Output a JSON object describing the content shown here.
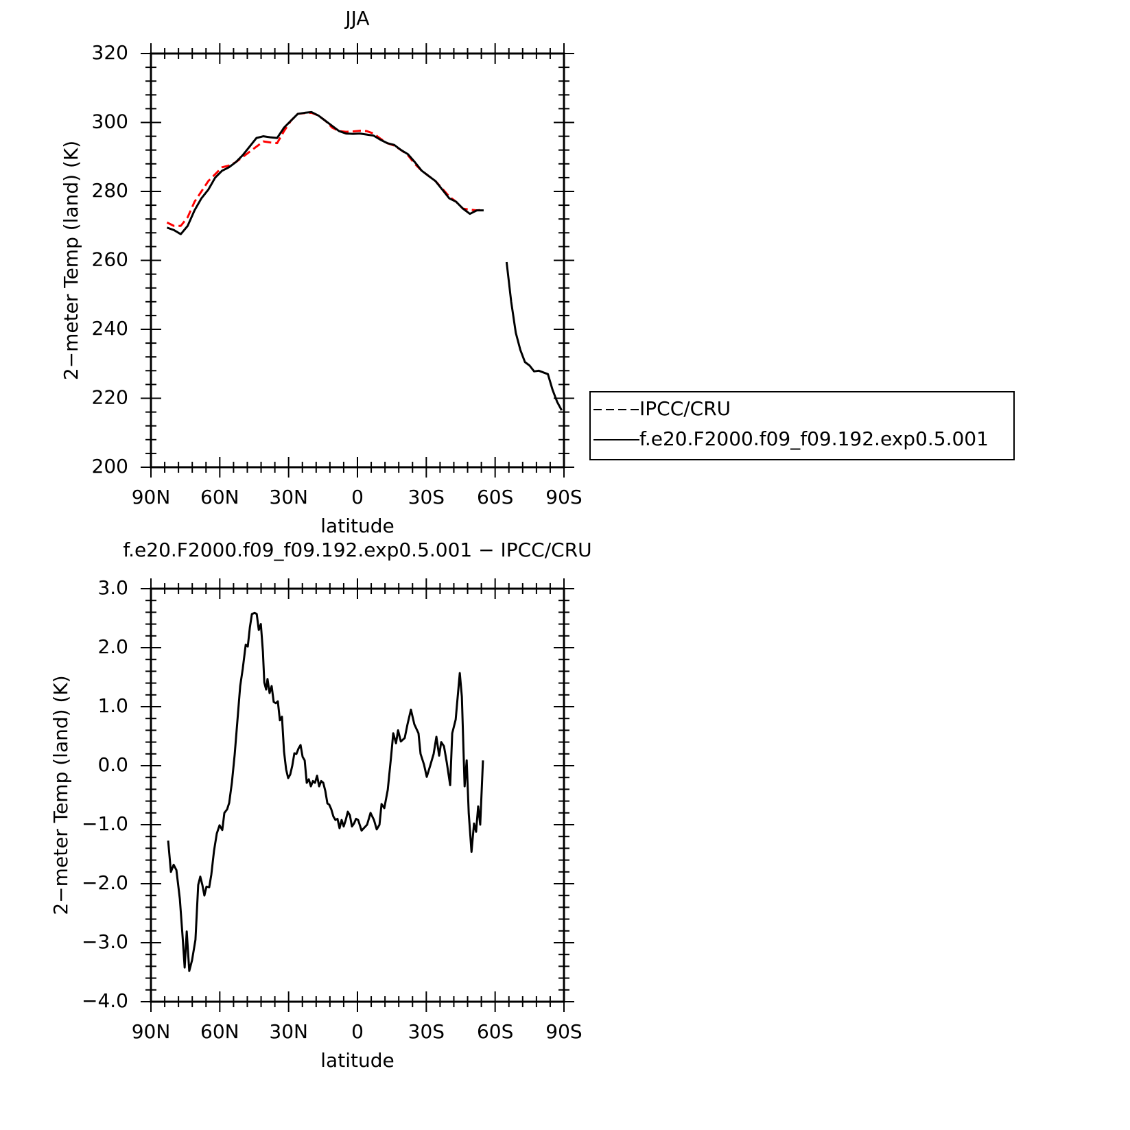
{
  "chart_data": [
    {
      "type": "line",
      "title": "JJA",
      "xlabel": "latitude",
      "ylabel": "2−meter Temp (land) (K)",
      "x": [
        83,
        80,
        77,
        74,
        71,
        68,
        65,
        62,
        59,
        56,
        53,
        50,
        47,
        44,
        41,
        38,
        35,
        32,
        29,
        26,
        23,
        20,
        17,
        14,
        11,
        8,
        5,
        2,
        -1,
        -4,
        -7,
        -10,
        -13,
        -16,
        -19,
        -22,
        -25,
        -28,
        -31,
        -34,
        -37,
        -40,
        -43,
        -46,
        -49,
        -52,
        -55,
        -60,
        -65,
        -67,
        -69,
        -71,
        -73,
        -75,
        -77,
        -79,
        -81,
        -83,
        -85,
        -87,
        -89
      ],
      "series": [
        {
          "name": "IPCC/CRU",
          "color": "#ff0000",
          "style": "dashed",
          "values": [
            271,
            270,
            270,
            272.5,
            277,
            280,
            283,
            285,
            287,
            287.5,
            288.5,
            290,
            291.5,
            293,
            294.5,
            294.2,
            294,
            297.5,
            300.5,
            302.5,
            302.7,
            302.8,
            302,
            300.5,
            298.5,
            297.5,
            297.3,
            297.4,
            297.6,
            297.5,
            296.8,
            295.3,
            294,
            293.3,
            292,
            290.5,
            288,
            286,
            284.5,
            283,
            280.8,
            278.5,
            277,
            275,
            274.7,
            274.5,
            274.7,
            null,
            null,
            null,
            null,
            null,
            null,
            null,
            null,
            null,
            null,
            null,
            null,
            null,
            null
          ]
        },
        {
          "name": "f.e20.F2000.f09_f09.192.exp0.5.001",
          "color": "#000000",
          "style": "solid",
          "values": [
            269.5,
            268.8,
            267.6,
            270,
            274.5,
            278,
            280.5,
            284,
            286,
            287,
            288.5,
            290.5,
            293,
            295.5,
            296,
            295.7,
            295.5,
            298.5,
            300.5,
            302.5,
            302.8,
            303,
            302,
            300.5,
            299,
            297.5,
            296.8,
            296.7,
            296.8,
            296.5,
            296.2,
            295,
            294,
            293.5,
            292,
            290.8,
            288.5,
            286,
            284.5,
            283,
            280.5,
            278,
            277,
            275,
            273.5,
            274.5,
            274.5,
            null,
            259.5,
            248,
            239,
            234,
            230.5,
            229.5,
            227.8,
            228,
            227.5,
            227,
            222.5,
            219,
            216.5
          ]
        }
      ],
      "xlim": [
        90,
        -90
      ],
      "xticks": [
        {
          "value": 90,
          "label": "90N"
        },
        {
          "value": 60,
          "label": "60N"
        },
        {
          "value": 30,
          "label": "30N"
        },
        0,
        {
          "value": -30,
          "label": "30S"
        },
        {
          "value": -60,
          "label": "60S"
        },
        {
          "value": -90,
          "label": "90S"
        }
      ],
      "ylim": [
        200,
        320
      ],
      "yticks": [
        200,
        220,
        240,
        260,
        280,
        300,
        320
      ],
      "legend": "right"
    },
    {
      "type": "line",
      "title": "f.e20.F2000.f09_f09.192.exp0.5.001 − IPCC/CRU",
      "xlabel": "latitude",
      "ylabel": "2−meter Temp (land) (K)",
      "x": [
        82.5,
        81.3,
        80.1,
        78.9,
        77.4,
        76.2,
        75.3,
        74.4,
        73.3,
        72.1,
        70.6,
        69.4,
        68.5,
        67.6,
        66.7,
        65.8,
        64.6,
        63.7,
        62.5,
        61.3,
        60.1,
        58.9,
        58.0,
        56.8,
        55.9,
        54.7,
        53.5,
        52.3,
        51.1,
        50.0,
        48.7,
        47.8,
        46.9,
        46.0,
        44.8,
        43.9,
        43.0,
        42.1,
        41.2,
        40.6,
        39.8,
        39.2,
        38.3,
        37.4,
        36.5,
        35.6,
        34.7,
        33.8,
        32.9,
        32.0,
        31.1,
        30.2,
        29.3,
        28.4,
        27.5,
        26.6,
        25.7,
        24.8,
        23.9,
        23.0,
        22.1,
        21.2,
        20.3,
        19.4,
        18.5,
        17.6,
        16.7,
        15.8,
        14.9,
        14.0,
        13.1,
        12.3,
        11.4,
        10.5,
        9.6,
        8.7,
        7.8,
        6.9,
        6.0,
        5.1,
        4.2,
        3.3,
        2.4,
        1.5,
        0.6,
        -0.3,
        -1.8,
        -4.2,
        -5.7,
        -7.2,
        -8.4,
        -9.6,
        -10.5,
        -11.7,
        -13.2,
        -14.7,
        -15.6,
        -16.8,
        -17.7,
        -18.9,
        -20.6,
        -21.8,
        -23.3,
        -24.8,
        -26.6,
        -27.5,
        -29.0,
        -30.2,
        -31.7,
        -33.2,
        -34.4,
        -35.6,
        -36.5,
        -37.7,
        -38.9,
        -40.4,
        -41.3,
        -42.8,
        -44.6,
        -45.5,
        -46.7,
        -47.6,
        -48.5,
        -49.7,
        -50.8,
        -51.7,
        -52.6,
        -53.5,
        -54.7
      ],
      "series": [
        {
          "color": "#000000",
          "style": "solid",
          "values": [
            -1.27,
            -1.8,
            -1.68,
            -1.77,
            -2.26,
            -2.9,
            -3.42,
            -2.81,
            -3.48,
            -3.3,
            -2.95,
            -2.02,
            -1.88,
            -2.02,
            -2.2,
            -2.05,
            -2.06,
            -1.85,
            -1.44,
            -1.15,
            -1.01,
            -1.09,
            -0.8,
            -0.74,
            -0.63,
            -0.28,
            0.19,
            0.77,
            1.35,
            1.64,
            2.05,
            2.02,
            2.34,
            2.57,
            2.59,
            2.57,
            2.3,
            2.4,
            1.93,
            1.41,
            1.29,
            1.47,
            1.23,
            1.35,
            1.08,
            1.06,
            1.09,
            0.77,
            0.83,
            0.24,
            -0.06,
            -0.21,
            -0.15,
            0.0,
            0.21,
            0.2,
            0.29,
            0.35,
            0.15,
            0.09,
            -0.29,
            -0.23,
            -0.35,
            -0.26,
            -0.29,
            -0.17,
            -0.35,
            -0.26,
            -0.29,
            -0.43,
            -0.64,
            -0.66,
            -0.74,
            -0.86,
            -0.92,
            -0.9,
            -1.06,
            -0.92,
            -1.03,
            -0.92,
            -0.78,
            -0.84,
            -1.03,
            -0.98,
            -0.9,
            -0.92,
            -1.1,
            -1.0,
            -0.8,
            -0.92,
            -1.08,
            -1.0,
            -0.65,
            -0.72,
            -0.41,
            0.17,
            0.55,
            0.38,
            0.6,
            0.41,
            0.47,
            0.7,
            0.95,
            0.7,
            0.55,
            0.2,
            0.02,
            -0.19,
            0.0,
            0.2,
            0.49,
            0.17,
            0.4,
            0.33,
            0.06,
            -0.33,
            0.55,
            0.78,
            1.57,
            1.17,
            -0.35,
            0.09,
            -0.81,
            -1.46,
            -0.98,
            -1.12,
            -0.69,
            -1.0,
            0.09
          ]
        }
      ],
      "xlim": [
        90,
        -90
      ],
      "xticks": [
        {
          "value": 90,
          "label": "90N"
        },
        {
          "value": 60,
          "label": "60N"
        },
        {
          "value": 30,
          "label": "30N"
        },
        0,
        {
          "value": -30,
          "label": "30S"
        },
        {
          "value": -60,
          "label": "60S"
        },
        {
          "value": -90,
          "label": "90S"
        }
      ],
      "ylim": [
        -4,
        3
      ],
      "yticks": [
        {
          "value": -4,
          "label": "−4.0"
        },
        {
          "value": -3,
          "label": "−3.0"
        },
        {
          "value": -2,
          "label": "−2.0"
        },
        {
          "value": -1,
          "label": "−1.0"
        },
        {
          "value": 0,
          "label": "0.0"
        },
        {
          "value": 1,
          "label": "1.0"
        },
        {
          "value": 2,
          "label": "2.0"
        },
        {
          "value": 3,
          "label": "3.0"
        }
      ]
    }
  ]
}
